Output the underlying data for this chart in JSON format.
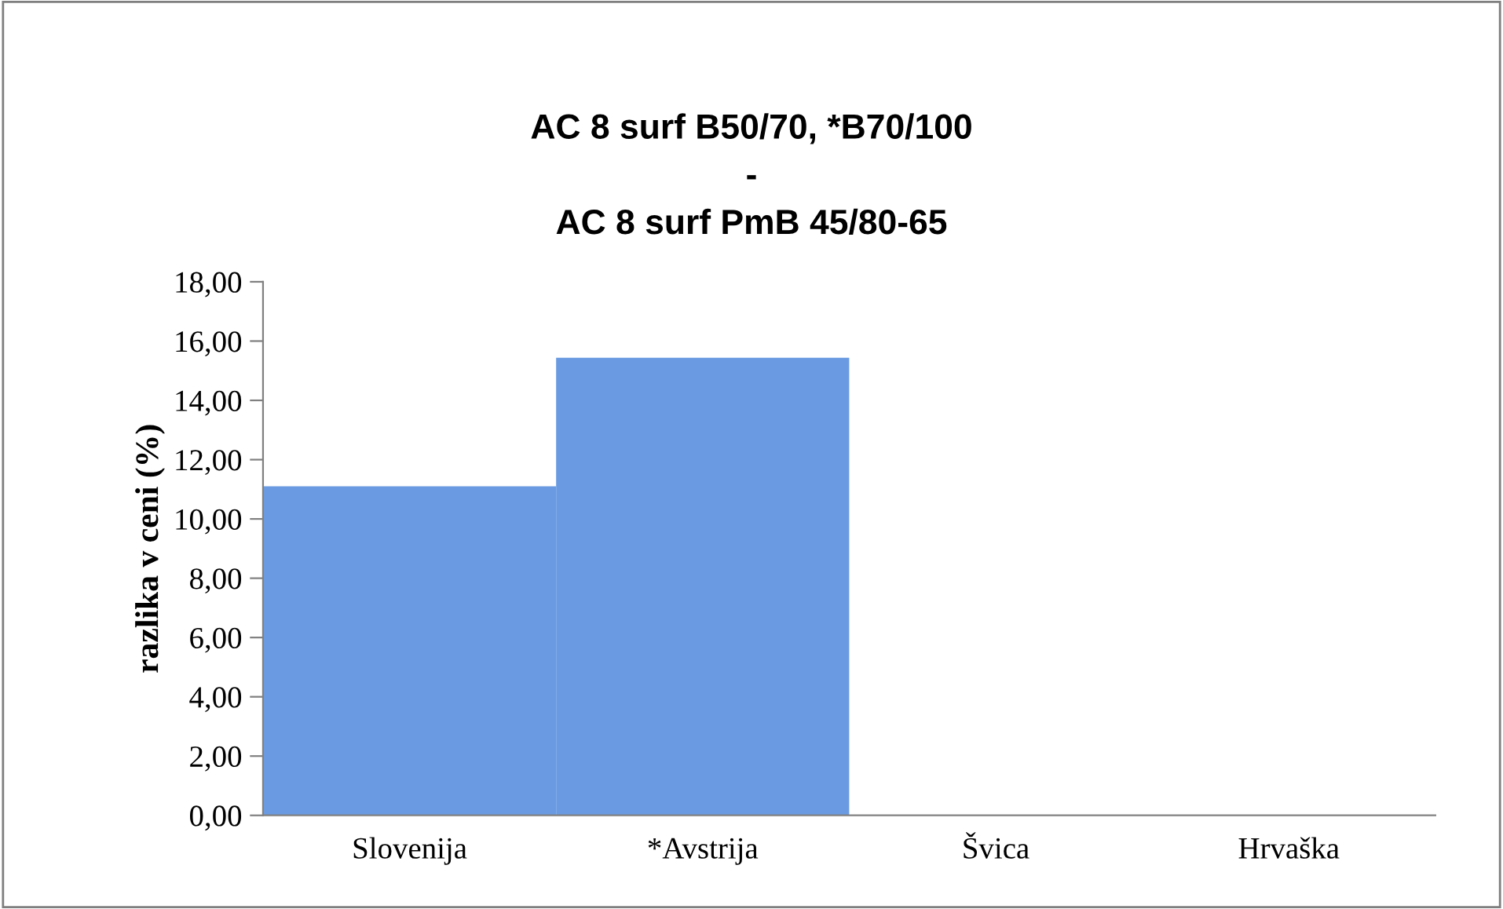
{
  "chart_data": {
    "type": "bar",
    "title": "AC 8 surf B50/70, *B70/100\n-\nAC 8 surf PmB 45/80-65",
    "ylabel": "razlika v ceni (%)",
    "categories": [
      "Slovenija",
      "*Avstrija",
      "Švica",
      "Hrvaška"
    ],
    "values": [
      11.1,
      15.44,
      null,
      null
    ],
    "color": "#6a9be2",
    "ylim": [
      0,
      18
    ],
    "yticks": [
      {
        "value": 0,
        "label": "0,00"
      },
      {
        "value": 2,
        "label": "2,00"
      },
      {
        "value": 4,
        "label": "4,00"
      },
      {
        "value": 6,
        "label": "6,00"
      },
      {
        "value": 8,
        "label": "8,00"
      },
      {
        "value": 10,
        "label": "10,00"
      },
      {
        "value": 12,
        "label": "12,00"
      },
      {
        "value": 14,
        "label": "14,00"
      },
      {
        "value": 16,
        "label": "16,00"
      },
      {
        "value": 18,
        "label": "18,00"
      }
    ],
    "grid": false,
    "legend": false
  }
}
